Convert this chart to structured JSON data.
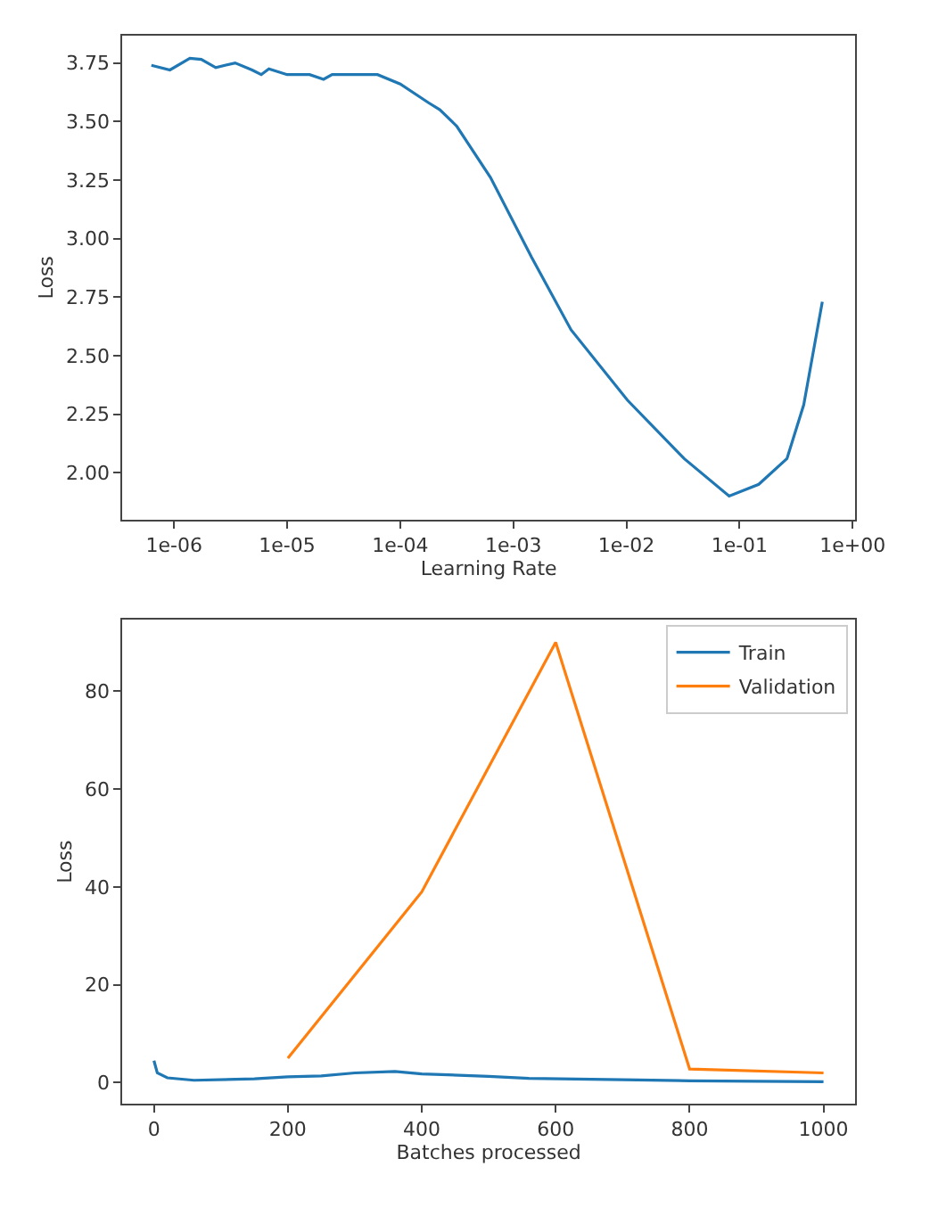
{
  "chart_data": [
    {
      "type": "line",
      "xlabel": "Learning Rate",
      "ylabel": "Loss",
      "log": "x",
      "marker": "none",
      "line_style": "solid",
      "xlim": [
        3.5e-07,
        1.05
      ],
      "ylim": [
        1.8,
        3.867
      ],
      "xticks": [
        {
          "value": 1e-06,
          "label": "1e-06"
        },
        {
          "value": 1e-05,
          "label": "1e-05"
        },
        {
          "value": 0.0001,
          "label": "1e-04"
        },
        {
          "value": 0.001,
          "label": "1e-03"
        },
        {
          "value": 0.01,
          "label": "1e-02"
        },
        {
          "value": 0.1,
          "label": "1e-01"
        },
        {
          "value": 1,
          "label": "1e+00"
        }
      ],
      "yticks": [
        {
          "value": 2,
          "label": "2.00"
        },
        {
          "value": 2.25,
          "label": "2.25"
        },
        {
          "value": 2.5,
          "label": "2.50"
        },
        {
          "value": 2.75,
          "label": "2.75"
        },
        {
          "value": 3,
          "label": "3.00"
        },
        {
          "value": 3.25,
          "label": "3.25"
        },
        {
          "value": 3.5,
          "label": "3.50"
        },
        {
          "value": 3.75,
          "label": "3.75"
        }
      ],
      "series": [
        {
          "color": "#1f77b4",
          "x": [
            6.3e-07,
            9.2e-07,
            1.38e-06,
            1.74e-06,
            2.34e-06,
            3.47e-06,
            4.9e-06,
            5.9e-06,
            6.9e-06,
            1e-05,
            1.58e-05,
            2.1e-05,
            2.5e-05,
            6.3e-05,
            0.0001,
            0.000178,
            0.000224,
            0.000316,
            0.00063,
            0.00145,
            0.00324,
            0.0102,
            0.0324,
            0.081,
            0.148,
            0.263,
            0.37,
            0.54
          ],
          "values": [
            3.74,
            3.72,
            3.77,
            3.765,
            3.73,
            3.75,
            3.72,
            3.7,
            3.725,
            3.7,
            3.7,
            3.68,
            3.7,
            3.7,
            3.66,
            3.58,
            3.55,
            3.48,
            3.26,
            2.92,
            2.61,
            2.31,
            2.06,
            1.9,
            1.95,
            2.06,
            2.29,
            2.73
          ]
        }
      ]
    },
    {
      "type": "line",
      "xlabel": "Batches processed",
      "ylabel": "Loss",
      "legend": "top right",
      "marker": "none",
      "line_style": "solid",
      "xlim": [
        -47,
        1047
      ],
      "ylim": [
        -4.3,
        94.6
      ],
      "xticks": [
        0,
        200,
        400,
        600,
        800,
        1000
      ],
      "yticks": [
        0,
        20,
        40,
        60,
        80
      ],
      "series": [
        {
          "name": "Train",
          "color": "#1f77b4",
          "x": [
            0,
            5,
            20,
            60,
            150,
            200,
            250,
            300,
            360,
            400,
            500,
            560,
            700,
            800,
            1000
          ],
          "values": [
            4.5,
            2,
            1,
            0.5,
            0.8,
            1.2,
            1.4,
            2,
            2.3,
            1.8,
            1.3,
            0.9,
            0.6,
            0.4,
            0.2
          ]
        },
        {
          "name": "Validation",
          "color": "#ff7f0e",
          "x": [
            200,
            400,
            600,
            800,
            1000
          ],
          "values": [
            5,
            39,
            90,
            2.8,
            2
          ]
        }
      ]
    }
  ]
}
